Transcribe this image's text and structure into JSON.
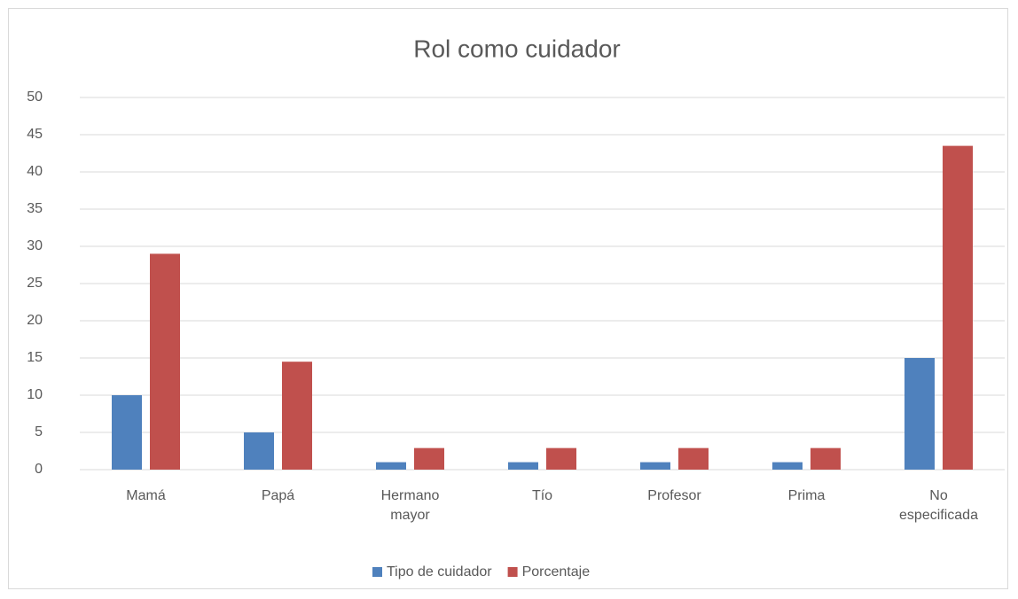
{
  "chart_data": {
    "type": "bar",
    "title": "Rol como cuidador",
    "categories": [
      "Mamá",
      "Papá",
      "Hermano mayor",
      "Tío",
      "Profesor",
      "Prima",
      "No especificada"
    ],
    "series": [
      {
        "name": "Tipo de cuidador",
        "color": "#4f81bd",
        "values": [
          10,
          5,
          1,
          1,
          1,
          1,
          15
        ]
      },
      {
        "name": "Porcentaje",
        "color": "#c0504d",
        "values": [
          29,
          14.5,
          2.9,
          2.9,
          2.9,
          2.9,
          43.5
        ]
      }
    ],
    "ylim": [
      0,
      50
    ],
    "yticks": [
      0,
      5,
      10,
      15,
      20,
      25,
      30,
      35,
      40,
      45,
      50
    ],
    "grid": true,
    "legend": "bottom"
  }
}
